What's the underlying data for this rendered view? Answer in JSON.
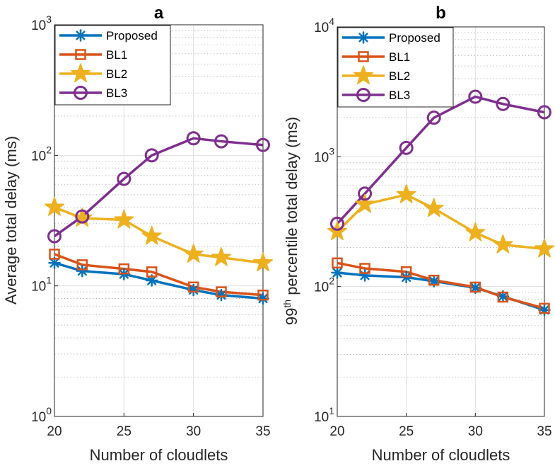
{
  "chart_data": [
    {
      "type": "line",
      "panel_label": "a",
      "xlabel": "Number of cloudlets",
      "ylabel": "Average total delay (ms)",
      "yscale": "log",
      "xlim": [
        20,
        35
      ],
      "ylim": [
        1,
        1000
      ],
      "xticks": [
        20,
        25,
        30,
        35
      ],
      "xtick_labels": [
        "20",
        "25",
        "30",
        "35"
      ],
      "ytick_exponents": [
        "0",
        "1",
        "2",
        "3"
      ],
      "legend_position": "top-left",
      "grid": true,
      "x": [
        20,
        22,
        25,
        27,
        30,
        32,
        35
      ],
      "series": [
        {
          "name": "Proposed",
          "color": "#0072BD",
          "marker": "asterisk",
          "values": [
            15,
            13,
            12.3,
            11,
            9.3,
            8.5,
            8
          ]
        },
        {
          "name": "BL1",
          "color": "#D95319",
          "marker": "square",
          "values": [
            17.5,
            14.5,
            13.5,
            12.8,
            9.8,
            9,
            8.5
          ]
        },
        {
          "name": "BL2",
          "color": "#EDB120",
          "marker": "star",
          "values": [
            40,
            33,
            32,
            24,
            17.5,
            16.5,
            15
          ]
        },
        {
          "name": "BL3",
          "color": "#7E2F8E",
          "marker": "circle",
          "values": [
            24,
            34,
            66,
            100,
            135,
            128,
            120
          ]
        }
      ]
    },
    {
      "type": "line",
      "panel_label": "b",
      "xlabel": "Number of cloudlets",
      "ylabel_main": "99",
      "ylabel_sup": "th",
      "ylabel_rest": " percentile total delay (ms)",
      "yscale": "log",
      "xlim": [
        20,
        35
      ],
      "ylim": [
        10,
        10000
      ],
      "xticks": [
        20,
        25,
        30,
        35
      ],
      "xtick_labels": [
        "20",
        "25",
        "30",
        "35"
      ],
      "ytick_exponents": [
        "1",
        "2",
        "3",
        "4"
      ],
      "legend_position": "top-left",
      "grid": true,
      "x": [
        20,
        22,
        25,
        27,
        30,
        32,
        35
      ],
      "series": [
        {
          "name": "Proposed",
          "color": "#0072BD",
          "marker": "asterisk",
          "values": [
            128,
            122,
            118,
            110,
            98,
            84,
            66
          ]
        },
        {
          "name": "BL1",
          "color": "#D95319",
          "marker": "square",
          "values": [
            152,
            138,
            130,
            112,
            99,
            83,
            68
          ]
        },
        {
          "name": "BL2",
          "color": "#EDB120",
          "marker": "star",
          "values": [
            265,
            430,
            510,
            400,
            260,
            210,
            195
          ]
        },
        {
          "name": "BL3",
          "color": "#7E2F8E",
          "marker": "circle",
          "values": [
            305,
            520,
            1170,
            2000,
            2900,
            2550,
            2200
          ]
        }
      ]
    }
  ]
}
